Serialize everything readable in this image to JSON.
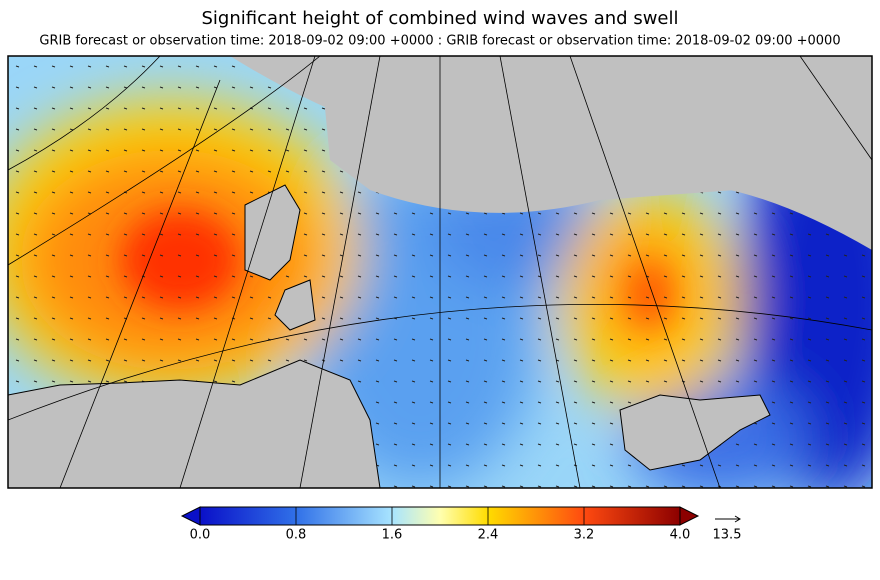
{
  "title": "Significant height of combined wind waves and swell",
  "subtitle": "GRIB forecast or observation time: 2018-09-02 09:00 +0000 : GRIB forecast or observation time: 2018-09-02 09:00 +0000",
  "colorbar": {
    "range": [
      0,
      4
    ],
    "ticks": [
      {
        "value": 0,
        "label": "0.0"
      },
      0.8,
      1.6,
      2.4,
      3.2,
      {
        "value": 4,
        "label": "4.0"
      }
    ]
  },
  "arrow_reference": 13.5
}
